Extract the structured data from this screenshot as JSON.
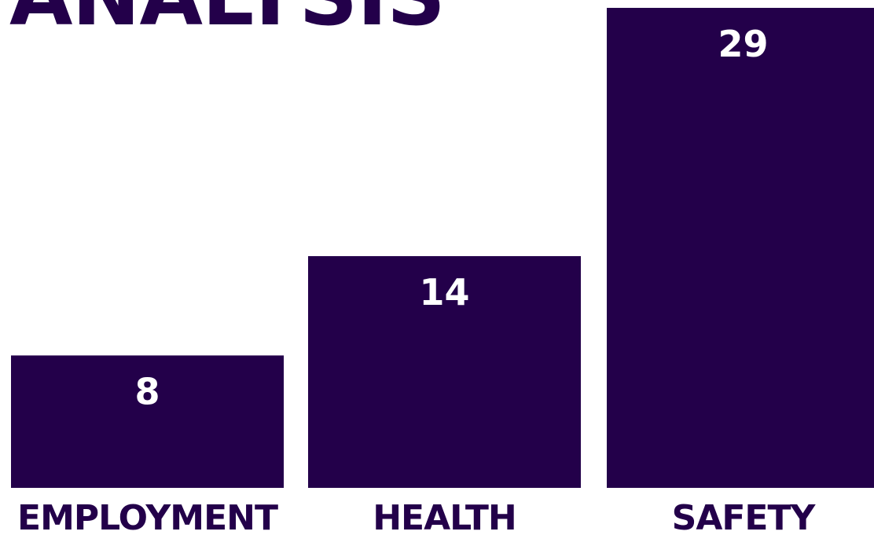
{
  "chart_data": {
    "type": "bar",
    "title": "ANALYSIS",
    "categories": [
      "EMPLOYMENT",
      "HEALTH",
      "SAFETY"
    ],
    "values": [
      8,
      14,
      29
    ],
    "ylim": [
      0,
      29
    ],
    "grid": false,
    "colors": {
      "bar": "#23004a",
      "value_label": "#ffffff",
      "category_label": "#23004a"
    }
  }
}
